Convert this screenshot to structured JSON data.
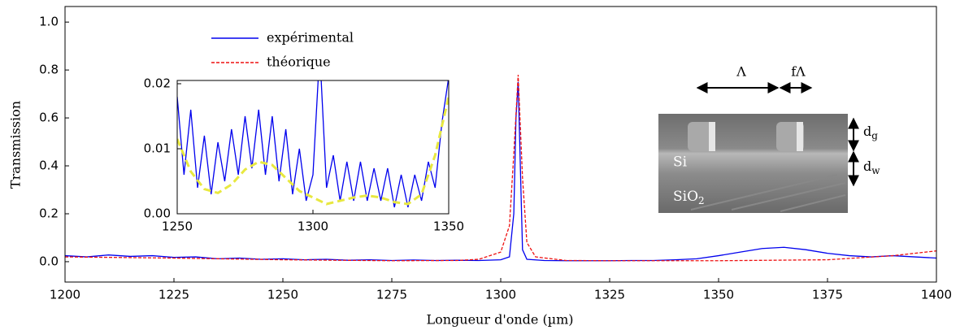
{
  "chart_data": [
    {
      "type": "line",
      "xlabel": "Longueur d'onde (µm)",
      "ylabel": "Transmission",
      "xlim": [
        1200,
        1400
      ],
      "ylim": [
        -0.085,
        1.065
      ],
      "xticks": [
        1200,
        1225,
        1250,
        1275,
        1300,
        1325,
        1350,
        1375,
        1400
      ],
      "yticks": [
        {
          "value": 0,
          "label": "0.0"
        },
        0.2,
        0.4,
        0.6,
        0.8,
        {
          "value": 1,
          "label": "1.0"
        }
      ],
      "legend": "upper left",
      "series": [
        {
          "name": "expérimental",
          "color": "#0000ee",
          "line_style": "solid",
          "x": [
            1200,
            1205,
            1210,
            1215,
            1220,
            1225,
            1230,
            1235,
            1240,
            1245,
            1250,
            1255,
            1260,
            1265,
            1270,
            1275,
            1280,
            1285,
            1290,
            1295,
            1300,
            1302,
            1303,
            1303.5,
            1304,
            1304.5,
            1305,
            1306,
            1310,
            1315,
            1320,
            1325,
            1330,
            1335,
            1340,
            1345,
            1350,
            1355,
            1360,
            1365,
            1370,
            1375,
            1380,
            1385,
            1390,
            1395,
            1400
          ],
          "values": [
            0.025,
            0.02,
            0.028,
            0.022,
            0.025,
            0.018,
            0.02,
            0.012,
            0.015,
            0.01,
            0.012,
            0.008,
            0.01,
            0.006,
            0.008,
            0.005,
            0.007,
            0.005,
            0.006,
            0.005,
            0.008,
            0.02,
            0.2,
            0.6,
            0.75,
            0.4,
            0.05,
            0.01,
            0.005,
            0.004,
            0.004,
            0.004,
            0.005,
            0.005,
            0.008,
            0.012,
            0.025,
            0.04,
            0.055,
            0.06,
            0.05,
            0.035,
            0.025,
            0.02,
            0.025,
            0.02,
            0.015
          ]
        },
        {
          "name": "théorique",
          "color": "#ee1111",
          "line_style": "dashed",
          "x": [
            1200,
            1225,
            1250,
            1275,
            1290,
            1295,
            1300,
            1302,
            1303,
            1304,
            1305,
            1306,
            1308,
            1315,
            1325,
            1350,
            1375,
            1390,
            1400
          ],
          "values": [
            0.02,
            0.015,
            0.008,
            0.004,
            0.005,
            0.01,
            0.04,
            0.15,
            0.45,
            0.78,
            0.35,
            0.08,
            0.02,
            0.005,
            0.004,
            0.004,
            0.008,
            0.025,
            0.045
          ]
        }
      ],
      "annotations": [
        "Λ",
        "fΛ",
        "d",
        "g",
        "d",
        "w",
        "Si",
        "SiO",
        "2"
      ]
    },
    {
      "type": "line",
      "xlim": [
        1250,
        1350
      ],
      "ylim": [
        0,
        0.0205
      ],
      "xticks": [
        1250,
        1300,
        1350
      ],
      "yticks": [
        {
          "value": 0,
          "label": "0.00"
        },
        0.01,
        0.02
      ],
      "series": [
        {
          "color": "#0000ee",
          "line_style": "solid",
          "x": [
            1250,
            1252.5,
            1255,
            1257.5,
            1260,
            1262.5,
            1265,
            1267.5,
            1270,
            1272.5,
            1275,
            1277.5,
            1280,
            1282.5,
            1285,
            1287.5,
            1290,
            1292.5,
            1295,
            1297.5,
            1300,
            1302.5,
            1305,
            1307.5,
            1310,
            1312.5,
            1315,
            1317.5,
            1320,
            1322.5,
            1325,
            1327.5,
            1330,
            1332.5,
            1335,
            1337.5,
            1340,
            1342.5,
            1345,
            1347.5,
            1350
          ],
          "values": [
            0.018,
            0.006,
            0.016,
            0.004,
            0.012,
            0.003,
            0.011,
            0.005,
            0.013,
            0.006,
            0.015,
            0.007,
            0.016,
            0.006,
            0.015,
            0.005,
            0.013,
            0.003,
            0.01,
            0.002,
            0.006,
            0.025,
            0.004,
            0.009,
            0.002,
            0.008,
            0.002,
            0.008,
            0.002,
            0.007,
            0.002,
            0.007,
            0.001,
            0.006,
            0.001,
            0.006,
            0.002,
            0.008,
            0.004,
            0.014,
            0.021
          ]
        },
        {
          "color": "#e8e840",
          "line_style": "dashed",
          "x": [
            1250,
            1255,
            1260,
            1265,
            1270,
            1275,
            1280,
            1285,
            1290,
            1295,
            1300,
            1305,
            1310,
            1315,
            1320,
            1325,
            1330,
            1335,
            1340,
            1345,
            1350
          ],
          "values": [
            0.0115,
            0.0065,
            0.0038,
            0.0032,
            0.0045,
            0.0068,
            0.008,
            0.0075,
            0.0055,
            0.0035,
            0.0025,
            0.0015,
            0.002,
            0.0025,
            0.0028,
            0.0025,
            0.0018,
            0.0015,
            0.003,
            0.009,
            0.018
          ]
        }
      ]
    }
  ]
}
